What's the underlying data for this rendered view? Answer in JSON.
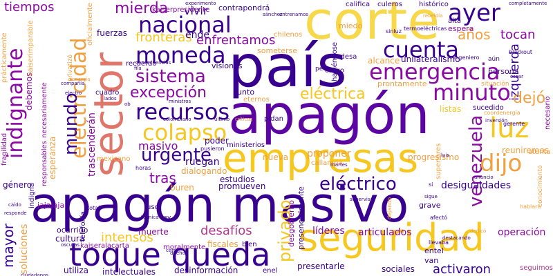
{
  "words": {
    "apagon_masivo": "apagón masivo",
    "apagon": "apagón",
    "pais": "país",
    "corte": "corte",
    "sector": "sector",
    "empresas": "empresas",
    "seguridad": "seguridad",
    "toque_queda": "toque queda",
    "emergencia": "emergencia",
    "cuenta": "cuenta",
    "nacional": "nacional",
    "moneda": "moneda",
    "ayer": "ayer",
    "minuto": "minuto",
    "recursos": "recursos",
    "colapso": "colapso",
    "sistema": "sistema",
    "electricidad": "electricidad",
    "indignante": "indignante",
    "mundo": "mundo",
    "venezuela": "venezuela",
    "luz": "luz",
    "dijo": "dijo",
    "electrico": "eléctrico",
    "electrica": "eléctrica",
    "urgente": "urgente",
    "excepcion": "excepción",
    "privado": "privado",
    "mierda": "mierda",
    "fronteras": "fronteras",
    "enfrentamos": "enfrentamos",
    "izquierda": "izquierda",
    "tiempos": "tiempos",
    "vivir": "vivir",
    "intensos": "intensos",
    "desafios": "desafíos",
    "masivo": "masivo",
    "tras": "tras",
    "mayor": "mayor",
    "soluciones": "soluciones",
    "dejo": "dejó",
    "anos": "años",
    "tocan": "tocan",
    "activaron": "activaron",
    "desigualdades": "desigualdades",
    "articulados": "articulados",
    "lideres": "líderes",
    "operacion": "operación",
    "trascenderan": "trascenderán",
    "contrapondra": "contrapondrá",
    "ende": "ende",
    "nueva": "nueva",
    "proponer": "proponer",
    "reuniremos": "reuniremos",
    "persona": "persona",
    "espera": "espera",
    "listas": "listas",
    "estudios": "estudios",
    "ruegan": "ruegan",
    "dialogando": "dialogando",
    "promueven": "promueven",
    "presentarle": "presentarle",
    "sociales": "sociales",
    "seguimos": "seguimos",
    "cultura": "cultura",
    "utiliza": "utiliza",
    "intelectuales": "intelectuales",
    "desinformacion": "desinformación",
    "fuerzas": "fuerzas",
    "unilateralismo": "unilateralismo",
    "alcance": "alcance",
    "progresismo": "progresismo",
    "visiones": "visiones",
    "junto": "junto",
    "pronto": "prontamente",
    "sucedido": "sucedido",
    "necesario": "necesario",
    "necesariamente": "necesariamente",
    "esperanza": "esperanza",
    "debemos": "debemos",
    "fragilidad": "fragilidad",
    "practicamente": "prácticamente",
    "oficialmente": "oficialmente",
    "kaiserimparable": "kaiserimparable",
    "responsables": "responsables",
    "genero": "género",
    "indigna": "indigna",
    "jajajaja": "jajajaja",
    "buren": "buren",
    "muerte": "muerte",
    "poder": "poder",
    "fiscales": "fiscales",
    "bien": "bien",
    "entel": "entel",
    "van": "van",
    "grave": "grave",
    "cargo": "cargo",
    "alta": "alta",
    "miedo": "miedo",
    "calificar": "califica",
    "culeros": "culeros",
    "historico": "histórico",
    "endesa": "endesa",
    "ocurrido": "ocurrido",
    "moralmente": "moralmente",
    "kaiserpresidente": "kaiserpresidente",
    "kaiseralacarta": "kaiseralacarta",
    "desgobierno": "desgobierno",
    "presencialmente": "presencialmente",
    "someterse": "someterse",
    "chilenos": "chilenos",
    "recuerdo": "recuerdo",
    "cuadro": "cuadro",
    "privatizo": "privatizó",
    "mexicano": "mexicano",
    "ministerios": "ministerios",
    "callampa": "callampa",
    "pidan": "pidan",
    "haciendose": "haciéndose",
    "peor": "peor",
    "eternos": "eternos",
    "superiores": "superiores",
    "situacion": "situación",
    "atenta": "atenta",
    "conocimiento": "conocimiento",
    "termoelectricas": "termoeléctricas",
    "blackout": "blackout",
    "ingeniero": "ingeniero",
    "aun": "aún",
    "sinluz": "sinluz",
    "telefonia": "telefonía",
    "total": "total",
    "horas": "horas",
    "uso": "uso",
    "ley": "ley",
    "enel": "enel",
    "llevaba": "llevaba",
    "afecto": "afectó",
    "hablara": "hablará",
    "coordenergia": "coordenergía",
    "gerente": "gerente",
    "dejando": "dejando",
    "pusieron": "pusieron",
    "colombiano": "colombiano",
    "critica": "críticas",
    "ultimo": "último",
    "ministros": "ministros",
    "consecuencias": "consecuencias",
    "lados": "lados",
    "experimento": "experimento",
    "entrenamos": "entrenamos",
    "sanchez": "sánchez",
    "completamente": "completamente",
    "rebeldía": "rebeldía",
    "energia": "energía",
    "tecnica": "técnica",
    "supervisar": "supervisar",
    "responde": "responde",
    "caido": "caído",
    "ciudadanos": "ciudadanos",
    "oscuras": "oscuras",
    "compania": "compañía",
    "electro": "electro",
    "dueno": "dueño",
    "cerrar": "cerrar",
    "anuncio": "anuncio",
    "destacando": "destacando",
    "dedico": "dedicó",
    "martes": "martes",
    "inversion": "inversión",
    "luis": "luis",
    "oscar": "oscar",
    "si": "si",
    "ob": "ob",
    "fila": "fila",
    "sigue": "sigue"
  }
}
